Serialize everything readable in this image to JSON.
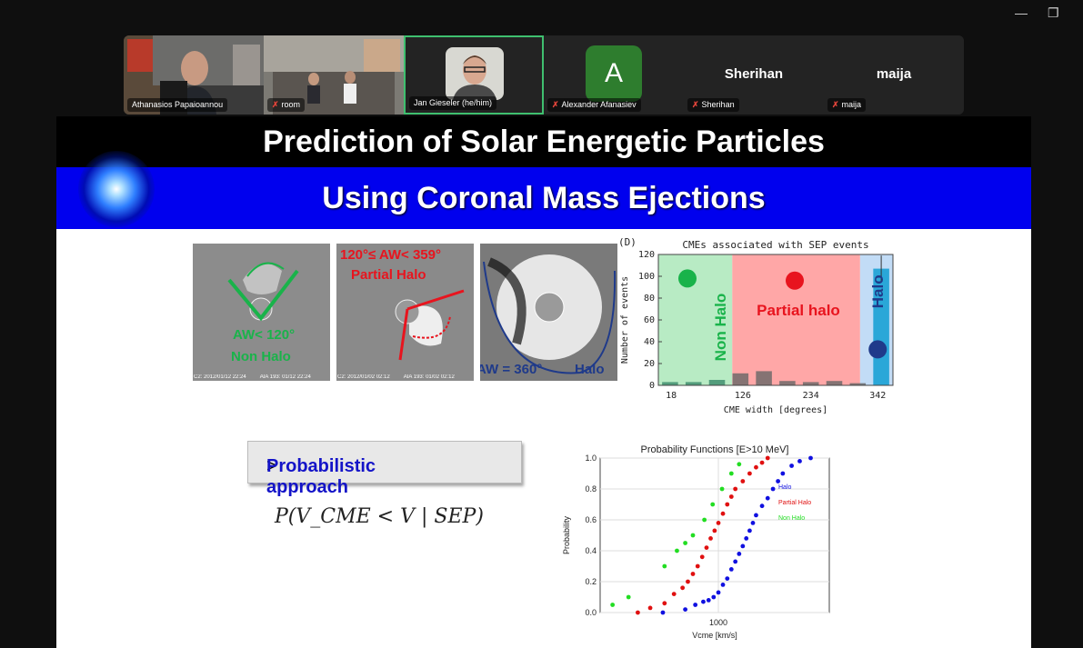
{
  "window": {
    "minimize_glyph": "—",
    "restore_glyph": "❐"
  },
  "participants": [
    {
      "name": "Athanasios Papaioannou",
      "muted": false,
      "type": "video"
    },
    {
      "name": "room",
      "muted": true,
      "type": "video"
    },
    {
      "name": "Jan Gieseler (he/him)",
      "muted": false,
      "type": "video",
      "active": true
    },
    {
      "name": "Alexander Afanasiev",
      "muted": true,
      "type": "avatar",
      "initial": "A"
    },
    {
      "name": "Sherihan",
      "muted": true,
      "type": "name"
    },
    {
      "name": "maija",
      "muted": true,
      "type": "name"
    }
  ],
  "slide": {
    "title_line1": "Prediction of Solar Energetic Particles",
    "title_line2": "Using Coronal Mass Ejections",
    "panels": [
      {
        "label_a": "AW< 120°",
        "label_b": "Non Halo",
        "footer_left": "C2: 2012/01/12 22:24",
        "footer_right": "AIA 193: 01/12 22:24"
      },
      {
        "label_a": "120°≤ AW< 359°",
        "label_b": "Partial Halo",
        "footer_left": "C2: 2012/01/02 02:12",
        "footer_right": "AIA 193: 01/02 02:12"
      },
      {
        "label_a": "AW = 360°",
        "label_b": "Halo",
        "footer_left": "C2: 2005/01/15 23:30",
        "footer_right": "EIT: 2005/01/15 23:24"
      }
    ],
    "probabilistic_label": "Probabilistic approach",
    "formula": "P(V_CME < V | SEP)"
  },
  "colors": {
    "blue": "#0000ee",
    "green": "#19b34a",
    "red": "#e8141e",
    "navy": "#1f3a8a"
  },
  "chart_data": [
    {
      "type": "bar",
      "panel_label": "(D)",
      "title": "CMEs associated with SEP events",
      "xlabel": "CME width [degrees]",
      "ylabel": "Number of events",
      "ylim": [
        0,
        120
      ],
      "yticks": [
        0,
        20,
        40,
        60,
        80,
        100,
        120
      ],
      "xtick_labels": [
        "18",
        "126",
        "234",
        "342"
      ],
      "region_labels": [
        "Non Halo",
        "Partial halo",
        "Halo"
      ],
      "values": [
        3,
        3,
        5,
        11,
        13,
        4,
        3,
        4,
        2,
        107
      ],
      "halo_error": 12
    },
    {
      "type": "scatter",
      "title": "Probability Functions [E>10 MeV]",
      "xlabel": "Vcme [km/s]",
      "ylabel": "Probability",
      "ylim": [
        0,
        1
      ],
      "yticks": [
        "0.0",
        "0.2",
        "0.4",
        "0.6",
        "0.8",
        "1.0"
      ],
      "xtick_label": "1000",
      "series": [
        {
          "name": "Halo",
          "color": "#1010e0",
          "x": [
            550,
            700,
            780,
            850,
            900,
            950,
            1000,
            1050,
            1100,
            1150,
            1200,
            1250,
            1300,
            1350,
            1400,
            1450,
            1500,
            1600,
            1700,
            1800,
            1900,
            2000,
            2200,
            2400,
            2700
          ],
          "y": [
            0.0,
            0.02,
            0.05,
            0.07,
            0.08,
            0.1,
            0.13,
            0.18,
            0.22,
            0.28,
            0.33,
            0.38,
            0.43,
            0.48,
            0.53,
            0.58,
            0.63,
            0.69,
            0.74,
            0.8,
            0.85,
            0.9,
            0.95,
            0.98,
            1.0
          ]
        },
        {
          "name": "Partial Halo",
          "color": "#e01010",
          "x": [
            420,
            480,
            560,
            620,
            680,
            720,
            760,
            800,
            840,
            880,
            920,
            960,
            1000,
            1050,
            1100,
            1150,
            1200,
            1300,
            1400,
            1500,
            1600,
            1700
          ],
          "y": [
            0.0,
            0.03,
            0.06,
            0.12,
            0.16,
            0.2,
            0.25,
            0.3,
            0.36,
            0.42,
            0.48,
            0.53,
            0.58,
            0.64,
            0.7,
            0.75,
            0.8,
            0.85,
            0.9,
            0.94,
            0.97,
            1.0
          ]
        },
        {
          "name": "Non Halo",
          "color": "#22dd22",
          "x": [
            320,
            380,
            560,
            640,
            700,
            760,
            860,
            940,
            1040,
            1150,
            1250
          ],
          "y": [
            0.05,
            0.1,
            0.3,
            0.4,
            0.45,
            0.5,
            0.6,
            0.7,
            0.8,
            0.9,
            0.96
          ]
        }
      ]
    }
  ]
}
